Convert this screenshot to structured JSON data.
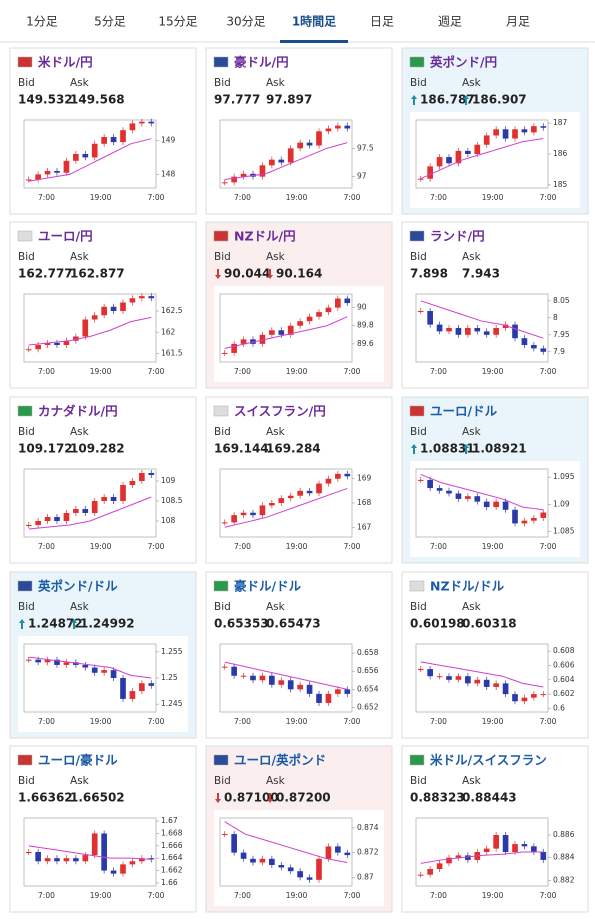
{
  "tabs": [
    "1分足",
    "5分足",
    "15分足",
    "30分足",
    "1時間足",
    "日足",
    "週足",
    "月足"
  ],
  "active_tab": 4,
  "labels": {
    "bid": "Bid",
    "ask": "Ask"
  },
  "time_labels": [
    "7:00",
    "19:00",
    "7:00"
  ],
  "cards": [
    {
      "name": "米ドル/円",
      "bid": "149.532",
      "ask": "149.568",
      "trend": null,
      "title_color": "#6a2a9a",
      "chart": {
        "type": "candlestick",
        "ylim": [
          147.6,
          149.6
        ],
        "yticks": [
          148,
          149
        ],
        "values": [
          147.85,
          148.0,
          148.1,
          148.05,
          148.4,
          148.6,
          148.5,
          148.9,
          149.1,
          148.95,
          149.3,
          149.5,
          149.55,
          149.5
        ],
        "ma": [
          147.8,
          147.9,
          148.0,
          148.3,
          148.6,
          148.9,
          149.05
        ]
      }
    },
    {
      "name": "豪ドル/円",
      "bid": "97.777",
      "ask": "97.897",
      "trend": null,
      "title_color": "#6a2a9a",
      "chart": {
        "type": "candlestick",
        "ylim": [
          96.8,
          98.0
        ],
        "yticks": [
          97,
          97.5
        ],
        "values": [
          96.9,
          97.0,
          97.05,
          97.0,
          97.2,
          97.3,
          97.25,
          97.5,
          97.6,
          97.55,
          97.8,
          97.85,
          97.9,
          97.85
        ],
        "ma": [
          96.95,
          97.0,
          97.05,
          97.2,
          97.35,
          97.5,
          97.6
        ]
      }
    },
    {
      "name": "英ポンド/円",
      "bid": "186.787",
      "ask": "186.907",
      "trend": "up",
      "title_color": "#6a2a9a",
      "chart": {
        "type": "candlestick",
        "ylim": [
          184.9,
          187.1
        ],
        "yticks": [
          185,
          186,
          187
        ],
        "values": [
          185.2,
          185.6,
          185.9,
          185.7,
          186.1,
          186.0,
          186.3,
          186.6,
          186.8,
          186.5,
          186.8,
          186.7,
          186.9,
          186.85
        ],
        "ma": [
          185.2,
          185.5,
          185.8,
          186.0,
          186.2,
          186.4,
          186.5
        ]
      }
    },
    {
      "name": "ユーロ/円",
      "bid": "162.777",
      "ask": "162.877",
      "trend": null,
      "title_color": "#6a2a9a",
      "chart": {
        "type": "candlestick",
        "ylim": [
          161.3,
          162.9
        ],
        "yticks": [
          161.5,
          162,
          162.5
        ],
        "values": [
          161.6,
          161.7,
          161.75,
          161.7,
          161.8,
          161.9,
          162.3,
          162.4,
          162.6,
          162.5,
          162.7,
          162.8,
          162.85,
          162.8
        ],
        "ma": [
          161.7,
          161.75,
          161.8,
          161.9,
          162.05,
          162.25,
          162.35
        ]
      }
    },
    {
      "name": "NZドル/円",
      "bid": "90.044",
      "ask": "90.164",
      "trend": "down",
      "title_color": "#6a2a9a",
      "chart": {
        "type": "candlestick",
        "ylim": [
          89.4,
          90.15
        ],
        "yticks": [
          89.6,
          89.8,
          90
        ],
        "values": [
          89.5,
          89.6,
          89.65,
          89.6,
          89.7,
          89.75,
          89.7,
          89.8,
          89.85,
          89.9,
          89.95,
          90.0,
          90.1,
          90.05
        ],
        "ma": [
          89.55,
          89.6,
          89.65,
          89.7,
          89.75,
          89.8,
          89.9
        ]
      }
    },
    {
      "name": "ランド/円",
      "bid": "7.898",
      "ask": "7.943",
      "trend": null,
      "title_color": "#6a2a9a",
      "chart": {
        "type": "candlestick",
        "ylim": [
          7.87,
          8.07
        ],
        "yticks": [
          7.9,
          7.95,
          8,
          8.05
        ],
        "values": [
          8.02,
          7.98,
          7.96,
          7.97,
          7.95,
          7.97,
          7.96,
          7.95,
          7.97,
          7.98,
          7.94,
          7.92,
          7.91,
          7.9
        ],
        "ma": [
          8.05,
          8.03,
          8.01,
          7.99,
          7.98,
          7.96,
          7.94
        ]
      }
    },
    {
      "name": "カナダドル/円",
      "bid": "109.172",
      "ask": "109.282",
      "trend": null,
      "title_color": "#6a2a9a",
      "chart": {
        "type": "candlestick",
        "ylim": [
          107.6,
          109.3
        ],
        "yticks": [
          108,
          108.5,
          109
        ],
        "values": [
          107.9,
          108.0,
          108.1,
          108.0,
          108.2,
          108.3,
          108.2,
          108.5,
          108.6,
          108.5,
          108.9,
          109.0,
          109.2,
          109.15
        ],
        "ma": [
          107.8,
          107.85,
          107.9,
          108.0,
          108.2,
          108.4,
          108.6
        ]
      }
    },
    {
      "name": "スイスフラン/円",
      "bid": "169.144",
      "ask": "169.284",
      "trend": null,
      "title_color": "#6a2a9a",
      "chart": {
        "type": "candlestick",
        "ylim": [
          166.6,
          169.4
        ],
        "yticks": [
          167,
          168,
          169
        ],
        "values": [
          167.2,
          167.5,
          167.6,
          167.5,
          167.9,
          168.0,
          168.2,
          168.3,
          168.5,
          168.4,
          168.8,
          169.0,
          169.2,
          169.1
        ],
        "ma": [
          167.0,
          167.2,
          167.4,
          167.7,
          168.0,
          168.3,
          168.6
        ]
      }
    },
    {
      "name": "ユーロ/ドル",
      "bid": "1.08831",
      "ask": "1.08921",
      "trend": "up",
      "title_color": "#1a5aa6",
      "chart": {
        "type": "candlestick",
        "ylim": [
          1.084,
          1.0965
        ],
        "yticks": [
          1.085,
          1.09,
          1.095
        ],
        "values": [
          1.0945,
          1.093,
          1.0925,
          1.092,
          1.091,
          1.0915,
          1.0905,
          1.0895,
          1.0905,
          1.089,
          1.0865,
          1.087,
          1.0875,
          1.0885
        ],
        "ma": [
          1.0955,
          1.094,
          1.093,
          1.092,
          1.091,
          1.0895,
          1.089
        ]
      }
    },
    {
      "name": "英ポンド/ドル",
      "bid": "1.24872",
      "ask": "1.24992",
      "trend": "up",
      "title_color": "#1a5aa6",
      "chart": {
        "type": "candlestick",
        "ylim": [
          1.2435,
          1.2565
        ],
        "yticks": [
          1.245,
          1.25,
          1.255
        ],
        "values": [
          1.2535,
          1.253,
          1.2535,
          1.2525,
          1.253,
          1.2525,
          1.252,
          1.251,
          1.2515,
          1.25,
          1.246,
          1.2475,
          1.249,
          1.2485
        ],
        "ma": [
          1.254,
          1.2535,
          1.253,
          1.2525,
          1.252,
          1.2505,
          1.25
        ]
      }
    },
    {
      "name": "豪ドル/ドル",
      "bid": "0.65353",
      "ask": "0.65473",
      "trend": null,
      "title_color": "#1a5aa6",
      "chart": {
        "type": "candlestick",
        "ylim": [
          0.6515,
          0.659
        ],
        "yticks": [
          0.652,
          0.654,
          0.656,
          0.658
        ],
        "values": [
          0.6565,
          0.6555,
          0.6555,
          0.655,
          0.6555,
          0.6545,
          0.655,
          0.654,
          0.6545,
          0.6535,
          0.6525,
          0.6535,
          0.654,
          0.6535
        ],
        "ma": [
          0.657,
          0.6565,
          0.656,
          0.6555,
          0.655,
          0.6545,
          0.654
        ]
      }
    },
    {
      "name": "NZドル/ドル",
      "bid": "0.60198",
      "ask": "0.60318",
      "trend": null,
      "title_color": "#1a5aa6",
      "chart": {
        "type": "candlestick",
        "ylim": [
          0.5995,
          0.609
        ],
        "yticks": [
          0.6,
          0.602,
          0.604,
          0.606,
          0.608
        ],
        "values": [
          0.6055,
          0.6045,
          0.6045,
          0.604,
          0.6045,
          0.6035,
          0.604,
          0.603,
          0.6035,
          0.602,
          0.601,
          0.6015,
          0.602,
          0.602
        ],
        "ma": [
          0.6065,
          0.606,
          0.6055,
          0.605,
          0.6045,
          0.6035,
          0.603
        ]
      }
    },
    {
      "name": "ユーロ/豪ドル",
      "bid": "1.66362",
      "ask": "1.66502",
      "trend": null,
      "title_color": "#1a5aa6",
      "chart": {
        "type": "candlestick",
        "ylim": [
          1.6595,
          1.6705
        ],
        "yticks": [
          1.66,
          1.662,
          1.664,
          1.666,
          1.668,
          1.67
        ],
        "values": [
          1.665,
          1.6635,
          1.664,
          1.6635,
          1.664,
          1.6635,
          1.6645,
          1.668,
          1.662,
          1.6615,
          1.663,
          1.6635,
          1.664,
          1.6638
        ],
        "ma": [
          1.666,
          1.6655,
          1.665,
          1.6645,
          1.664,
          1.664,
          1.6638
        ]
      }
    },
    {
      "name": "ユーロ/英ポンド",
      "bid": "0.87100",
      "ask": "0.87200",
      "trend": "down",
      "title_color": "#1a5aa6",
      "chart": {
        "type": "candlestick",
        "ylim": [
          0.8693,
          0.8748
        ],
        "yticks": [
          0.87,
          0.872,
          0.874
        ],
        "values": [
          0.8735,
          0.872,
          0.8715,
          0.8712,
          0.8715,
          0.871,
          0.8708,
          0.8705,
          0.87,
          0.8698,
          0.8715,
          0.8725,
          0.872,
          0.8718
        ],
        "ma": [
          0.8745,
          0.8735,
          0.873,
          0.8725,
          0.872,
          0.8715,
          0.8712
        ]
      }
    },
    {
      "name": "米ドル/スイスフラン",
      "bid": "0.88323",
      "ask": "0.88443",
      "trend": null,
      "title_color": "#1a5aa6",
      "chart": {
        "type": "candlestick",
        "ylim": [
          0.8815,
          0.8875
        ],
        "yticks": [
          0.882,
          0.884,
          0.886
        ],
        "values": [
          0.8825,
          0.883,
          0.8835,
          0.884,
          0.8842,
          0.8838,
          0.8845,
          0.8848,
          0.886,
          0.8845,
          0.8852,
          0.885,
          0.8845,
          0.8838
        ],
        "ma": [
          0.8835,
          0.8838,
          0.884,
          0.8842,
          0.8843,
          0.8845,
          0.8845
        ]
      }
    }
  ]
}
